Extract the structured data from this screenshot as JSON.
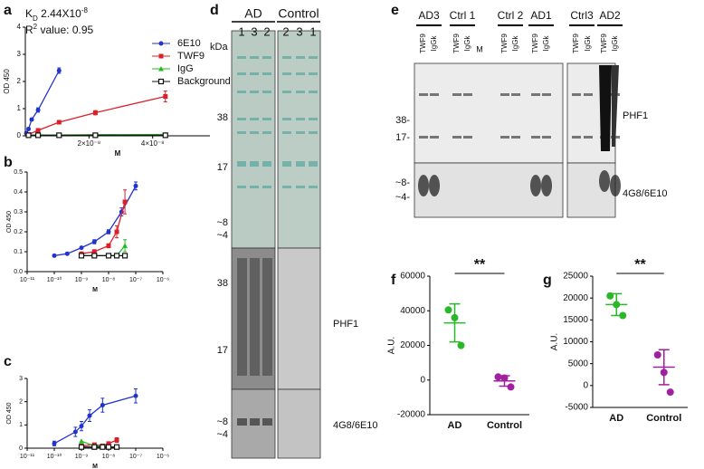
{
  "panel_labels": [
    "a",
    "b",
    "c",
    "d",
    "e",
    "f",
    "g"
  ],
  "chart_data": [
    {
      "type": "line",
      "xscale": "linear",
      "xlim": [
        0,
        5.8e-08
      ],
      "ylim": [
        0,
        4
      ],
      "yticks": [
        0,
        1,
        2,
        3,
        4
      ],
      "xticks": [
        {
          "value": 2e-08,
          "label": "2×10⁻⁸"
        },
        {
          "value": 4e-08,
          "label": "4×10⁻⁸"
        }
      ],
      "xlabel": "M",
      "ylabel": "OD 450",
      "legend": "upper right",
      "kd_text": [
        "K",
        "D",
        " 2.44X10",
        "-8"
      ],
      "r2_text": [
        "R",
        "2",
        " value: 0.95"
      ],
      "series": [
        {
          "name": "6E10",
          "color": "#2233cc",
          "marker": "circle",
          "x": [
            3e-10,
            1e-09,
            2e-09,
            4e-09,
            1.06e-08
          ],
          "values": [
            0.1,
            0.25,
            0.6,
            0.95,
            2.4
          ],
          "errors": [
            0.05,
            0.05,
            0.05,
            0.08,
            0.1
          ]
        },
        {
          "name": "TWF9",
          "color": "#dd1f2a",
          "marker": "square",
          "x": [
            1e-09,
            4e-09,
            1.06e-08,
            2.2e-08,
            4.4e-08
          ],
          "values": [
            0.05,
            0.2,
            0.5,
            0.85,
            1.45
          ],
          "errors": [
            0.03,
            0.05,
            0.05,
            0.08,
            0.2
          ]
        },
        {
          "name": "IgG",
          "color": "#22bb22",
          "marker": "triangle",
          "x": [
            1e-09,
            4e-09,
            1.06e-08,
            2.2e-08,
            4.4e-08
          ],
          "values": [
            0.03,
            0.03,
            0.03,
            0.04,
            0.05
          ]
        },
        {
          "name": "Background",
          "color": "#111111",
          "marker": "open-square",
          "x": [
            1e-09,
            4e-09,
            1.06e-08,
            2.2e-08,
            4.4e-08
          ],
          "values": [
            0.02,
            0.02,
            0.02,
            0.02,
            0.02
          ]
        }
      ]
    },
    {
      "type": "line",
      "xscale": "log",
      "xlim": [
        1e-11,
        1e-06
      ],
      "ylim": [
        0,
        0.5
      ],
      "yticks": [
        {
          "value": 0,
          "label": "0.0"
        },
        0.1,
        0.2,
        0.3,
        0.4,
        0.5
      ],
      "xticks": [
        {
          "value": 1e-11,
          "label": "10⁻¹¹"
        },
        {
          "value": 1e-10,
          "label": "10⁻¹⁰"
        },
        {
          "value": 1e-09,
          "label": "10⁻⁹"
        },
        {
          "value": 1e-08,
          "label": "10⁻⁸"
        },
        {
          "value": 1e-07,
          "label": "10⁻⁷"
        },
        {
          "value": 1e-06,
          "label": "10⁻⁶"
        }
      ],
      "xlabel": "M",
      "ylabel": "OD 450",
      "series": [
        {
          "color": "#2233cc",
          "marker": "circle",
          "x": [
            1e-10,
            3e-10,
            1e-09,
            3e-09,
            1e-08,
            3e-08,
            1e-07
          ],
          "values": [
            0.08,
            0.09,
            0.12,
            0.15,
            0.2,
            0.3,
            0.43
          ],
          "errors": [
            0.005,
            0.005,
            0.005,
            0.01,
            0.01,
            0.02,
            0.02
          ]
        },
        {
          "color": "#dd1f2a",
          "marker": "square",
          "x": [
            1e-09,
            3e-09,
            1e-08,
            2e-08,
            4e-08
          ],
          "values": [
            0.09,
            0.1,
            0.13,
            0.2,
            0.35
          ],
          "errors": [
            0.005,
            0.01,
            0.01,
            0.03,
            0.06
          ]
        },
        {
          "color": "#22bb22",
          "marker": "triangle",
          "x": [
            1e-09,
            3e-09,
            1e-08,
            2e-08,
            4e-08
          ],
          "values": [
            0.08,
            0.08,
            0.08,
            0.08,
            0.13
          ],
          "errors": [
            0.005,
            0.005,
            0.005,
            0.01,
            0.03
          ]
        },
        {
          "color": "#111111",
          "marker": "open-square",
          "x": [
            1e-09,
            3e-09,
            1e-08,
            2e-08,
            4e-08
          ],
          "values": [
            0.08,
            0.08,
            0.08,
            0.08,
            0.08
          ]
        }
      ]
    },
    {
      "type": "line",
      "xscale": "log",
      "xlim": [
        1e-11,
        1e-06
      ],
      "ylim": [
        0,
        3
      ],
      "yticks": [
        0,
        1,
        2,
        3
      ],
      "xticks": [
        {
          "value": 1e-11,
          "label": "10⁻¹¹"
        },
        {
          "value": 1e-10,
          "label": "10⁻¹⁰"
        },
        {
          "value": 1e-09,
          "label": "10⁻⁹"
        },
        {
          "value": 1e-08,
          "label": "10⁻⁸"
        },
        {
          "value": 1e-07,
          "label": "10⁻⁷"
        },
        {
          "value": 1e-06,
          "label": "10⁻⁶"
        }
      ],
      "xlabel": "M",
      "ylabel": "OD 450",
      "series": [
        {
          "color": "#2233cc",
          "marker": "circle",
          "x": [
            1e-10,
            6e-10,
            1e-09,
            2e-09,
            6e-09,
            1e-07
          ],
          "values": [
            0.2,
            0.7,
            0.95,
            1.4,
            1.85,
            2.25
          ],
          "errors": [
            0.1,
            0.2,
            0.2,
            0.25,
            0.3,
            0.3
          ]
        },
        {
          "color": "#dd1f2a",
          "marker": "square",
          "x": [
            1e-09,
            3e-09,
            6e-09,
            1e-08,
            2e-08
          ],
          "values": [
            0.1,
            0.15,
            0.1,
            0.2,
            0.35
          ],
          "errors": [
            0.05,
            0.05,
            0.05,
            0.05,
            0.1
          ]
        },
        {
          "color": "#22bb22",
          "marker": "triangle",
          "x": [
            1e-09,
            3e-09,
            6e-09,
            1e-08,
            2e-08
          ],
          "values": [
            0.3,
            0.1,
            0.1,
            0.05,
            0.05
          ]
        },
        {
          "color": "#111111",
          "marker": "open-square",
          "x": [
            1e-09,
            3e-09,
            6e-09,
            1e-08,
            2e-08
          ],
          "values": [
            0.05,
            0.05,
            0.05,
            0.05,
            0.05
          ]
        }
      ]
    },
    {
      "type": "dot",
      "ylim": [
        -20000,
        60000
      ],
      "yticks": [
        -20000,
        0,
        20000,
        40000,
        60000
      ],
      "ylabel": "A.U.",
      "significance": "**",
      "groups": [
        {
          "name": "AD",
          "color": "#2ab72a",
          "values": [
            40500,
            36000,
            20000
          ],
          "mean": 33000,
          "sd": 11000
        },
        {
          "name": "Control",
          "color": "#a020a0",
          "values": [
            1800,
            1200,
            -4000
          ],
          "mean": -500,
          "sd": 3000
        }
      ]
    },
    {
      "type": "dot",
      "ylim": [
        -5000,
        25000
      ],
      "yticks": [
        -5000,
        0,
        5000,
        10000,
        15000,
        20000,
        25000
      ],
      "ylabel": "A.U.",
      "significance": "**",
      "groups": [
        {
          "name": "AD",
          "color": "#2ab72a",
          "values": [
            20500,
            18500,
            16000
          ],
          "mean": 18500,
          "sd": 2500
        },
        {
          "name": "Control",
          "color": "#a020a0",
          "values": [
            7000,
            3000,
            -1500
          ],
          "mean": 4200,
          "sd": 4000
        }
      ]
    }
  ],
  "blot_d": {
    "groups": [
      "AD",
      "Control"
    ],
    "lanes": [
      "1",
      "3",
      "2",
      "2",
      "3",
      "1"
    ],
    "unit": "kDa",
    "markers_top": [
      "38",
      "17",
      "~8",
      "~4"
    ],
    "markers_mid": [
      "38",
      "17"
    ],
    "markers_low": [
      "~8",
      "~4"
    ],
    "stains": [
      "PHF1",
      "4G8/6E10"
    ]
  },
  "blot_e": {
    "samples": [
      "AD3",
      "Ctrl 1",
      "Ctrl 2",
      "AD1",
      "Ctrl3",
      "AD2"
    ],
    "lanes": [
      "TWF9",
      "IgGk",
      "TWF9",
      "IgGk",
      "M",
      "TWF9",
      "IgGk",
      "TWF9",
      "IgGk",
      "TWF9",
      "IgGk",
      "TWF9",
      "IgGk"
    ],
    "markers": [
      "38-",
      "17-",
      "~8-",
      "~4-"
    ],
    "stains": [
      "PHF1",
      "4G8/6E10"
    ]
  }
}
